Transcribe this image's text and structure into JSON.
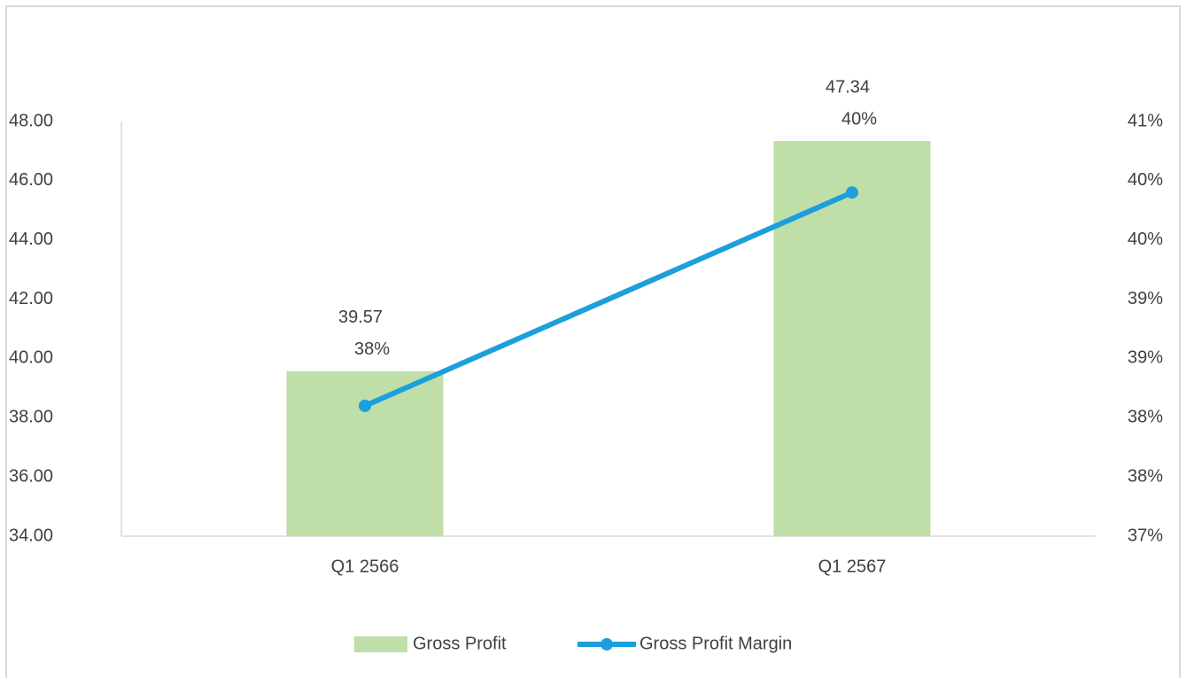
{
  "chart_data": {
    "type": "bar",
    "categories": [
      "Q1 2566",
      "Q1 2567"
    ],
    "series": [
      {
        "name": "Gross Profit",
        "type": "bar",
        "color": "#bfdea8",
        "values": [
          39.57,
          47.34
        ]
      },
      {
        "name": "Gross Profit Margin",
        "type": "line",
        "axis": "y2",
        "color": "#1ca0dc",
        "values": [
          38.1,
          39.9
        ],
        "value_labels": [
          "38%",
          "40%"
        ]
      }
    ],
    "ylim": [
      34,
      48
    ],
    "yticks": [
      {
        "value": 34,
        "label": "34.00"
      },
      {
        "value": 36,
        "label": "36.00"
      },
      {
        "value": 38,
        "label": "38.00"
      },
      {
        "value": 40,
        "label": "40.00"
      },
      {
        "value": 42,
        "label": "42.00"
      },
      {
        "value": 44,
        "label": "44.00"
      },
      {
        "value": 46,
        "label": "46.00"
      },
      {
        "value": 48,
        "label": "48.00"
      }
    ],
    "y2lim": [
      37,
      40.5
    ],
    "y2ticks": [
      {
        "value": 37,
        "label": "37%"
      },
      {
        "value": 37.5,
        "label": "38%"
      },
      {
        "value": 38,
        "label": "38%"
      },
      {
        "value": 38.5,
        "label": "39%"
      },
      {
        "value": 39,
        "label": "39%"
      },
      {
        "value": 39.5,
        "label": "40%"
      },
      {
        "value": 40,
        "label": "40%"
      },
      {
        "value": 40.5,
        "label": "41%"
      }
    ],
    "legend": "bottom"
  }
}
